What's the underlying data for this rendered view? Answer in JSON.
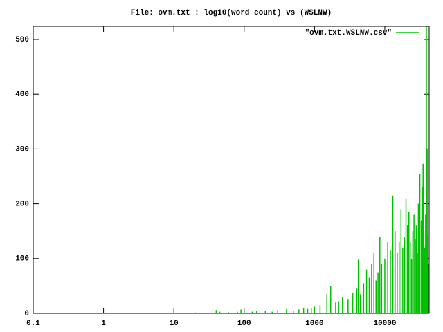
{
  "chart_data": {
    "type": "impulses",
    "title": "File: ovm.txt : log10(word count) vs (WSLNW)",
    "xscale": "log",
    "xlim": [
      0.1,
      42700
    ],
    "xticks": [
      0.1,
      1,
      10,
      100,
      1000,
      10000
    ],
    "ylim": [
      0,
      524
    ],
    "yticks": [
      0,
      100,
      200,
      300,
      400,
      500
    ],
    "legend": "top-right",
    "x": [
      1.2,
      3,
      8,
      20,
      40,
      45,
      60,
      80,
      90,
      100,
      130,
      150,
      200,
      250,
      300,
      400,
      500,
      600,
      700,
      800,
      900,
      1000,
      1200,
      1500,
      1700,
      2000,
      2200,
      2500,
      3000,
      3500,
      4000,
      4200,
      4500,
      5000,
      5500,
      6000,
      6500,
      7000,
      7500,
      8000,
      8500,
      9000,
      10000,
      11000,
      12000,
      13000,
      14000,
      15000,
      16000,
      17000,
      18000,
      19000,
      20000,
      21000,
      22000,
      23000,
      24000,
      25000,
      26000,
      27000,
      28000,
      29000,
      30000,
      31500,
      33000,
      34000,
      35000,
      36000,
      37000,
      38000,
      39000,
      40000,
      41000,
      42000
    ],
    "series": [
      {
        "name": "\"ovm.txt.WSLNW.csv\"",
        "color": "#00c000",
        "values": [
          1,
          1,
          1,
          2,
          6,
          3,
          2,
          3,
          7,
          4,
          3,
          4,
          5,
          3,
          6,
          8,
          5,
          7,
          9,
          8,
          10,
          12,
          15,
          35,
          50,
          20,
          22,
          30,
          25,
          38,
          45,
          98,
          35,
          55,
          80,
          65,
          90,
          110,
          60,
          75,
          140,
          90,
          100,
          130,
          115,
          215,
          150,
          110,
          130,
          190,
          120,
          140,
          210,
          160,
          185,
          130,
          100,
          150,
          180,
          135,
          160,
          110,
          200,
          255,
          170,
          230,
          273,
          150,
          120,
          180,
          524,
          300,
          140,
          90
        ]
      }
    ]
  }
}
